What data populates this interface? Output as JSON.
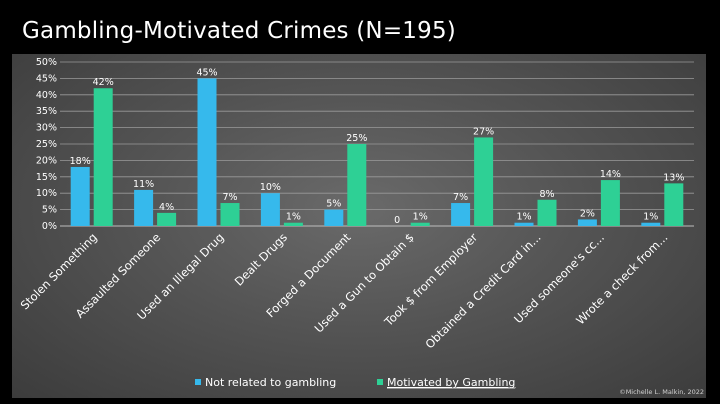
{
  "slide": {
    "title": "Gambling-Motivated Crimes (N=195)",
    "copyright": "©Michelle L. Malkin, 2022"
  },
  "chart_data": {
    "type": "bar",
    "ylim": [
      0,
      50
    ],
    "y_ticks": [
      "0%",
      "5%",
      "10%",
      "15%",
      "20%",
      "25%",
      "30%",
      "35%",
      "40%",
      "45%",
      "50%"
    ],
    "grid": true,
    "legend_position": "bottom",
    "categories": [
      "Stolen Something",
      "Assaulted Someone",
      "Used an Illegal Drug",
      "Dealt Drugs",
      "Forged a Document",
      "Used a Gun to Obtain $",
      "Took $ from Employer",
      "Obtained a Credit Card in...",
      "Used someone's cc...",
      "Wrote a check from..."
    ],
    "series": [
      {
        "name": "Not related to gambling",
        "color": "#36b9ec",
        "values": [
          18,
          11,
          45,
          10,
          5,
          0,
          7,
          1,
          2,
          1
        ],
        "labels": [
          "18%",
          "11%",
          "45%",
          "10%",
          "5%",
          "0",
          "7%",
          "1%",
          "2%",
          "1%"
        ]
      },
      {
        "name": "Motivated by Gambling",
        "color": "#2ed095",
        "values": [
          42,
          4,
          7,
          1,
          25,
          1,
          27,
          8,
          14,
          13
        ],
        "labels": [
          "42%",
          "4%",
          "7%",
          "1%",
          "25%",
          "1%",
          "27%",
          "8%",
          "14%",
          "13%"
        ]
      }
    ]
  }
}
